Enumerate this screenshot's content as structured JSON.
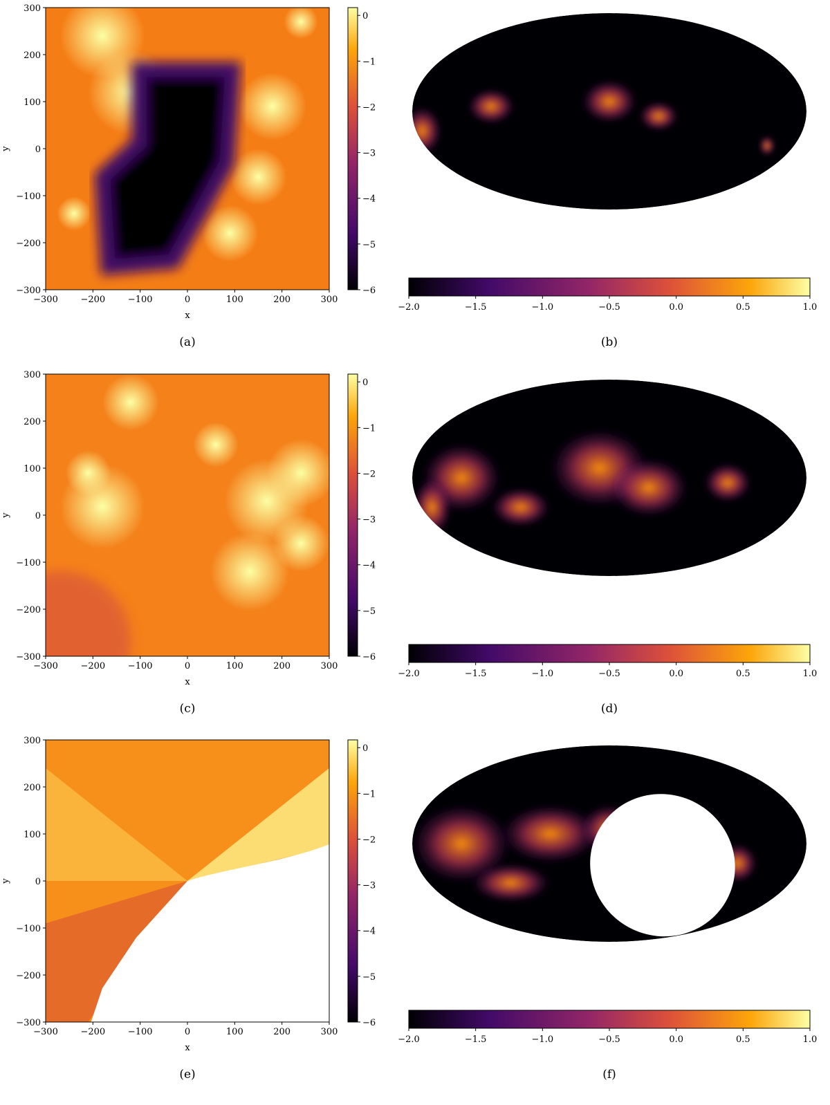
{
  "chart_data": [
    {
      "type": "heatmap",
      "caption": "(a)",
      "xlabel": "x",
      "ylabel": "y",
      "xlim": [
        -300,
        300
      ],
      "ylim": [
        -300,
        300
      ],
      "xticks": [
        {
          "value": -300,
          "label": "−300"
        },
        {
          "value": -200,
          "label": "−200"
        },
        {
          "value": -100,
          "label": "−100"
        },
        0,
        100,
        200,
        300
      ],
      "yticks": [
        {
          "value": -300,
          "label": "−300"
        },
        {
          "value": -200,
          "label": "−200"
        },
        {
          "value": -100,
          "label": "−100"
        },
        0,
        100,
        200,
        300
      ],
      "clim": [
        -6,
        0.17
      ],
      "cticks": [
        {
          "value": -6,
          "label": "−6"
        },
        {
          "value": -5,
          "label": "−5"
        },
        {
          "value": -4,
          "label": "−4"
        },
        {
          "value": -3,
          "label": "−3"
        },
        {
          "value": -2,
          "label": "−2"
        },
        {
          "value": -1,
          "label": "−1"
        },
        0
      ]
    },
    {
      "type": "mollweide",
      "caption": "(b)",
      "clim": [
        -2,
        1
      ],
      "cticks": [
        {
          "value": -2,
          "label": "−2.0"
        },
        {
          "value": -1.5,
          "label": "−1.5"
        },
        {
          "value": -1,
          "label": "−1.0"
        },
        {
          "value": -0.5,
          "label": "−0.5"
        },
        {
          "value": 0,
          "label": "0.0"
        },
        0.5,
        {
          "value": 1,
          "label": "1.0"
        }
      ]
    },
    {
      "type": "heatmap",
      "caption": "(c)",
      "xlabel": "x",
      "ylabel": "y",
      "xlim": [
        -300,
        300
      ],
      "ylim": [
        -300,
        300
      ],
      "xticks": [
        {
          "value": -300,
          "label": "−300"
        },
        {
          "value": -200,
          "label": "−200"
        },
        {
          "value": -100,
          "label": "−100"
        },
        0,
        100,
        200,
        300
      ],
      "yticks": [
        {
          "value": -300,
          "label": "−300"
        },
        {
          "value": -200,
          "label": "−200"
        },
        {
          "value": -100,
          "label": "−100"
        },
        0,
        100,
        200,
        300
      ],
      "clim": [
        -6,
        0.17
      ],
      "cticks": [
        {
          "value": -6,
          "label": "−6"
        },
        {
          "value": -5,
          "label": "−5"
        },
        {
          "value": -4,
          "label": "−4"
        },
        {
          "value": -3,
          "label": "−3"
        },
        {
          "value": -2,
          "label": "−2"
        },
        {
          "value": -1,
          "label": "−1"
        },
        0
      ]
    },
    {
      "type": "mollweide",
      "caption": "(d)",
      "clim": [
        -2,
        1
      ],
      "cticks": [
        {
          "value": -2,
          "label": "−2.0"
        },
        {
          "value": -1.5,
          "label": "−1.5"
        },
        {
          "value": -1,
          "label": "−1.0"
        },
        {
          "value": -0.5,
          "label": "−0.5"
        },
        {
          "value": 0,
          "label": "0.0"
        },
        0.5,
        {
          "value": 1,
          "label": "1.0"
        }
      ]
    },
    {
      "type": "heatmap",
      "caption": "(e)",
      "xlabel": "x",
      "ylabel": "y",
      "xlim": [
        -300,
        300
      ],
      "ylim": [
        -300,
        300
      ],
      "xticks": [
        {
          "value": -300,
          "label": "−300"
        },
        {
          "value": -200,
          "label": "−200"
        },
        {
          "value": -100,
          "label": "−100"
        },
        0,
        100,
        200,
        300
      ],
      "yticks": [
        {
          "value": -300,
          "label": "−300"
        },
        {
          "value": -200,
          "label": "−200"
        },
        {
          "value": -100,
          "label": "−100"
        },
        0,
        100,
        200,
        300
      ],
      "clim": [
        -6,
        0.17
      ],
      "cticks": [
        {
          "value": -6,
          "label": "−6"
        },
        {
          "value": -5,
          "label": "−5"
        },
        {
          "value": -4,
          "label": "−4"
        },
        {
          "value": -3,
          "label": "−3"
        },
        {
          "value": -2,
          "label": "−2"
        },
        {
          "value": -1,
          "label": "−1"
        },
        0
      ]
    },
    {
      "type": "mollweide",
      "caption": "(f)",
      "clim": [
        -2,
        1
      ],
      "cticks": [
        {
          "value": -2,
          "label": "−2.0"
        },
        {
          "value": -1.5,
          "label": "−1.5"
        },
        {
          "value": -1,
          "label": "−1.0"
        },
        {
          "value": -0.5,
          "label": "−0.5"
        },
        {
          "value": 0,
          "label": "0.0"
        },
        0.5,
        {
          "value": 1,
          "label": "1.0"
        }
      ]
    }
  ]
}
